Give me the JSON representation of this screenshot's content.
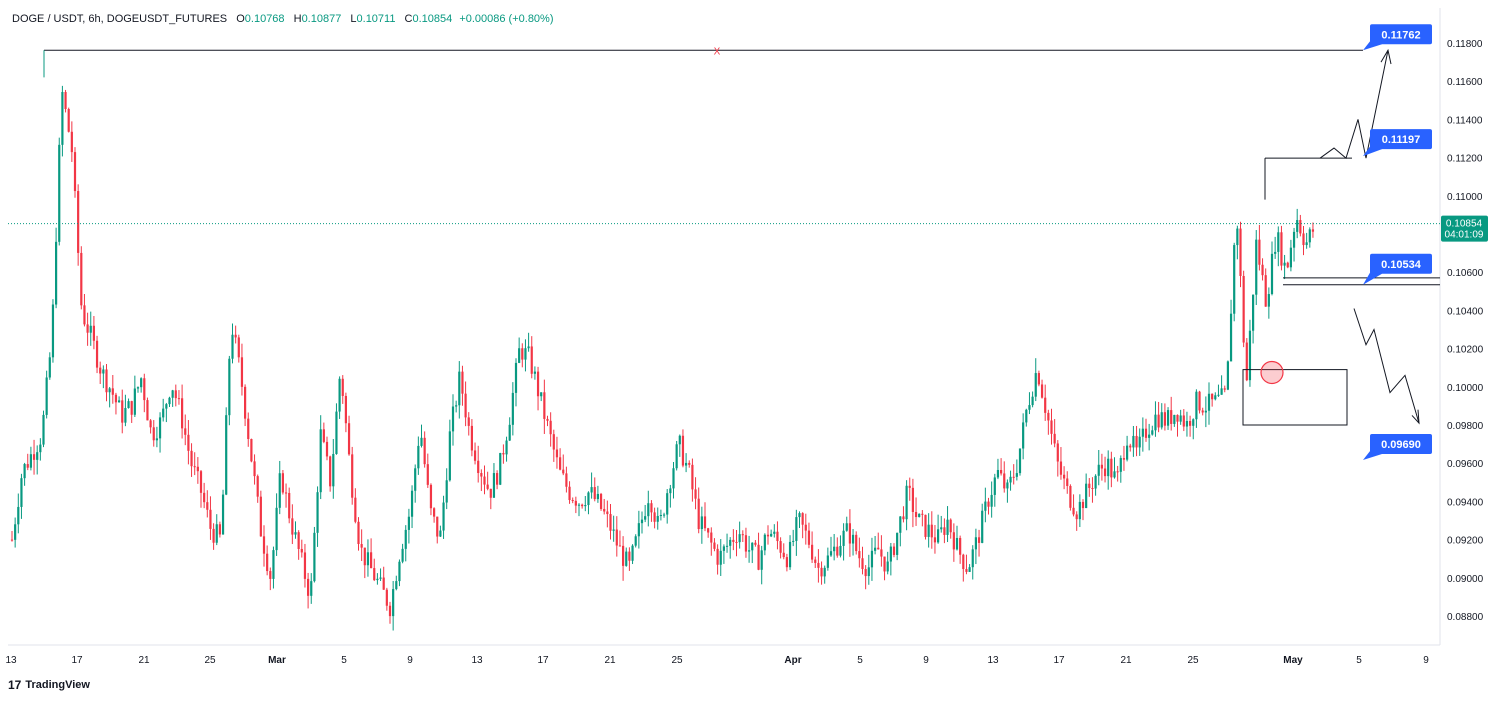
{
  "header": {
    "symbol": "DOGE / USDT, 6h, DOGEUSDT_FUTURES",
    "o_label": "O",
    "o": "0.10768",
    "h_label": "H",
    "h": "0.10877",
    "l_label": "L",
    "l": "0.10711",
    "c_label": "C",
    "c": "0.10854",
    "change": "+0.00086 (+0.80%)"
  },
  "brand": {
    "logo": "17",
    "name": "TradingView"
  },
  "chart_data": {
    "type": "candlestick",
    "ylim": [
      0.0866,
      0.1198
    ],
    "x_ticks": [
      "13",
      "17",
      "21",
      "25",
      "Mar",
      "5",
      "9",
      "13",
      "17",
      "21",
      "25",
      "Apr",
      "5",
      "9",
      "13",
      "17",
      "21",
      "25",
      "May",
      "5",
      "9"
    ],
    "y_ticks": [
      "0.11800",
      "0.11600",
      "0.11400",
      "0.11200",
      "0.11000",
      "0.10600",
      "0.10400",
      "0.10200",
      "0.10000",
      "0.09800",
      "0.09600",
      "0.09400",
      "0.09200",
      "0.09000",
      "0.08800"
    ],
    "last_price": {
      "value": "0.10854",
      "countdown": "04:01:09"
    },
    "close_path": [
      [
        0,
        0.092
      ],
      [
        1,
        0.0955
      ],
      [
        2,
        0.0965
      ],
      [
        3,
        0.0975
      ],
      [
        4,
        0.1025
      ],
      [
        5,
        0.1155
      ],
      [
        6,
        0.1125
      ],
      [
        7,
        0.104
      ],
      [
        8,
        0.1025
      ],
      [
        9,
        0.1008
      ],
      [
        10,
        0.0998
      ],
      [
        11,
        0.0985
      ],
      [
        12,
        0.099
      ],
      [
        13,
        0.1005
      ],
      [
        14,
        0.0975
      ],
      [
        15,
        0.0982
      ],
      [
        16,
        0.1003
      ],
      [
        17,
        0.0985
      ],
      [
        18,
        0.096
      ],
      [
        19,
        0.0945
      ],
      [
        20,
        0.0925
      ],
      [
        21,
        0.092
      ],
      [
        22,
        0.1035
      ],
      [
        23,
        0.1005
      ],
      [
        24,
        0.0965
      ],
      [
        25,
        0.0925
      ],
      [
        26,
        0.09
      ],
      [
        27,
        0.0955
      ],
      [
        28,
        0.093
      ],
      [
        29,
        0.091
      ],
      [
        30,
        0.089
      ],
      [
        31,
        0.0975
      ],
      [
        32,
        0.095
      ],
      [
        33,
        0.101
      ],
      [
        34,
        0.0955
      ],
      [
        35,
        0.0915
      ],
      [
        36,
        0.0905
      ],
      [
        37,
        0.0895
      ],
      [
        38,
        0.0885
      ],
      [
        39,
        0.0915
      ],
      [
        40,
        0.0935
      ],
      [
        41,
        0.098
      ],
      [
        42,
        0.0935
      ],
      [
        43,
        0.092
      ],
      [
        44,
        0.0975
      ],
      [
        45,
        0.1005
      ],
      [
        46,
        0.0975
      ],
      [
        47,
        0.0958
      ],
      [
        48,
        0.0945
      ],
      [
        49,
        0.0958
      ],
      [
        50,
        0.0985
      ],
      [
        51,
        0.102
      ],
      [
        52,
        0.1015
      ],
      [
        53,
        0.0995
      ],
      [
        54,
        0.0975
      ],
      [
        55,
        0.0955
      ],
      [
        56,
        0.0945
      ],
      [
        57,
        0.094
      ],
      [
        58,
        0.0945
      ],
      [
        59,
        0.0938
      ],
      [
        60,
        0.0928
      ],
      [
        61,
        0.0915
      ],
      [
        62,
        0.0905
      ],
      [
        63,
        0.0925
      ],
      [
        64,
        0.0945
      ],
      [
        65,
        0.0925
      ],
      [
        66,
        0.095
      ],
      [
        67,
        0.097
      ],
      [
        68,
        0.0955
      ],
      [
        69,
        0.093
      ],
      [
        70,
        0.092
      ],
      [
        71,
        0.091
      ],
      [
        72,
        0.0918
      ],
      [
        73,
        0.0925
      ],
      [
        74,
        0.0915
      ],
      [
        75,
        0.091
      ],
      [
        76,
        0.0925
      ],
      [
        77,
        0.0918
      ],
      [
        78,
        0.091
      ],
      [
        79,
        0.093
      ],
      [
        80,
        0.092
      ],
      [
        81,
        0.0905
      ],
      [
        82,
        0.091
      ],
      [
        83,
        0.0918
      ],
      [
        84,
        0.0925
      ],
      [
        85,
        0.0912
      ],
      [
        86,
        0.0905
      ],
      [
        87,
        0.0915
      ],
      [
        88,
        0.0905
      ],
      [
        89,
        0.0925
      ],
      [
        90,
        0.0945
      ],
      [
        91,
        0.093
      ],
      [
        92,
        0.0925
      ],
      [
        93,
        0.092
      ],
      [
        94,
        0.093
      ],
      [
        95,
        0.0915
      ],
      [
        96,
        0.0905
      ],
      [
        97,
        0.092
      ],
      [
        98,
        0.094
      ],
      [
        99,
        0.0955
      ],
      [
        100,
        0.0945
      ],
      [
        101,
        0.096
      ],
      [
        102,
        0.099
      ],
      [
        103,
        0.101
      ],
      [
        104,
        0.0985
      ],
      [
        105,
        0.096
      ],
      [
        106,
        0.0945
      ],
      [
        107,
        0.0935
      ],
      [
        108,
        0.0945
      ],
      [
        109,
        0.0955
      ],
      [
        110,
        0.096
      ],
      [
        111,
        0.095
      ],
      [
        112,
        0.0975
      ],
      [
        113,
        0.0965
      ],
      [
        114,
        0.0978
      ],
      [
        115,
        0.0985
      ],
      [
        116,
        0.0982
      ],
      [
        117,
        0.0988
      ],
      [
        118,
        0.098
      ],
      [
        119,
        0.0992
      ],
      [
        120,
        0.099
      ],
      [
        121,
        0.0992
      ],
      [
        122,
        0.0995
      ],
      [
        123,
        0.1095
      ],
      [
        124,
        0.1
      ],
      [
        125,
        0.1075
      ],
      [
        126,
        0.1045
      ],
      [
        127,
        0.108
      ],
      [
        128,
        0.106
      ],
      [
        129,
        0.109
      ],
      [
        130,
        0.1075
      ],
      [
        131,
        0.1085
      ]
    ],
    "levels": [
      {
        "label": "0.11762",
        "value": 0.11762
      },
      {
        "label": "0.11197",
        "value": 0.11197
      },
      {
        "label": "0.10534",
        "value": 0.10534
      },
      {
        "label": "0.09690",
        "value": 0.0969
      }
    ],
    "marks": {
      "x_label": "X"
    }
  }
}
